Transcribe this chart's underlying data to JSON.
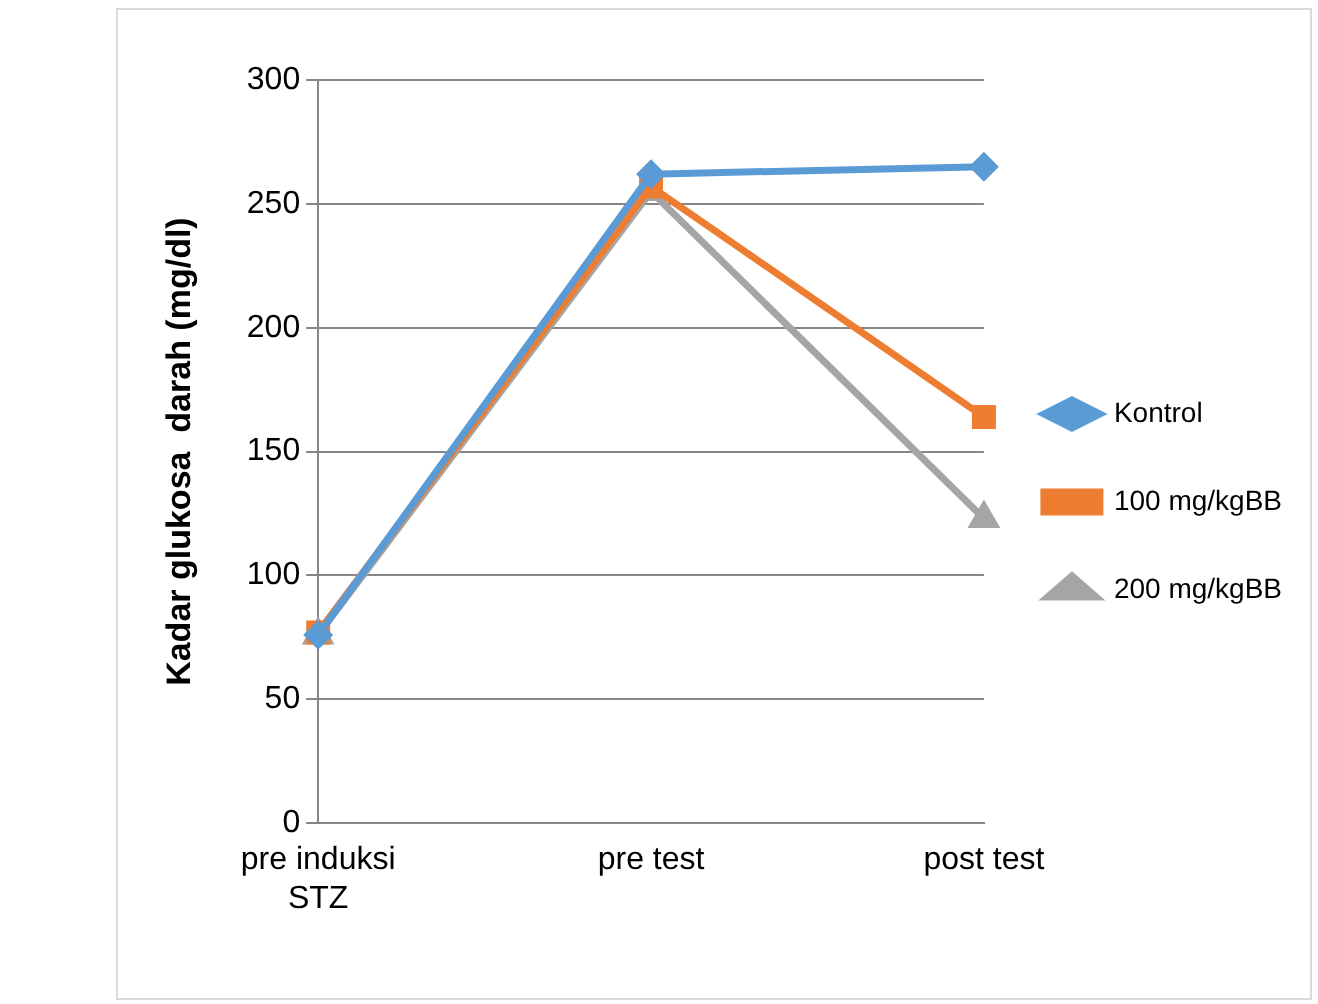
{
  "chart_data": {
    "type": "line",
    "ylabel": "Kadar glukosa  darah (mg/dl)",
    "categories": [
      "pre induksi STZ",
      "pre test",
      "post test"
    ],
    "series": [
      {
        "name": "Kontrol",
        "color": "#5b9bd5",
        "marker": "diamond",
        "values": [
          76,
          262,
          265
        ]
      },
      {
        "name": "100 mg/kgBB",
        "color": "#ed7d31",
        "marker": "square",
        "values": [
          77,
          257,
          164
        ]
      },
      {
        "name": "200 mg/kgBB",
        "color": "#a5a5a5",
        "marker": "triangle",
        "values": [
          76,
          255,
          123
        ]
      }
    ],
    "ylim": [
      0,
      300
    ],
    "yticks": [
      0,
      50,
      100,
      150,
      200,
      250,
      300
    ],
    "grid": "y",
    "legend": "right",
    "line_style": "solid"
  }
}
